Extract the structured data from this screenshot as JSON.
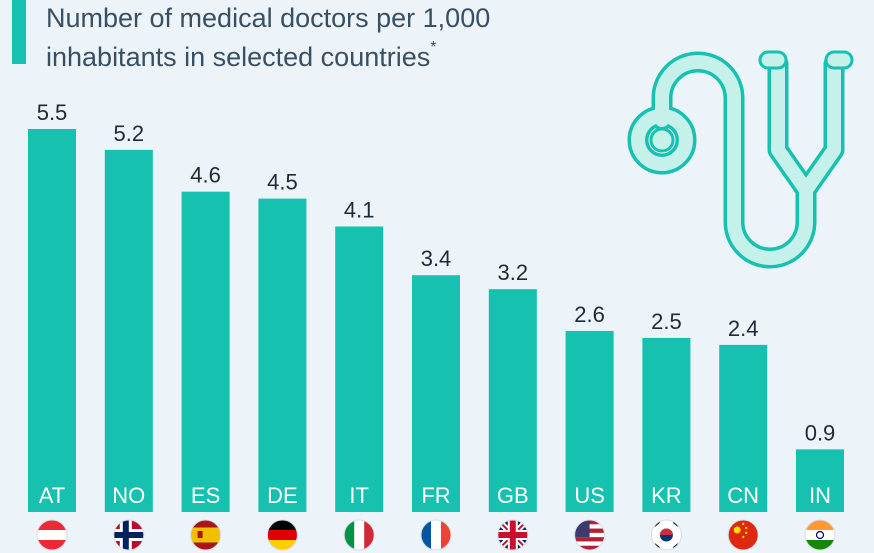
{
  "title": "Number of medical doctors per 1,000 inhabitants in selected countries",
  "title_marker": "*",
  "colors": {
    "bar": "#17c1b0",
    "background": "#ecf3f9",
    "title": "#3a4f61",
    "value": "#1d2b39",
    "icon_fill": "#c6f1ea",
    "icon_stroke": "#17c1b0"
  },
  "icon": "stethoscope-icon",
  "chart_data": {
    "type": "bar",
    "title": "Number of medical doctors per 1,000 inhabitants in selected countries",
    "xlabel": "",
    "ylabel": "",
    "categories": [
      "AT",
      "NO",
      "ES",
      "DE",
      "IT",
      "FR",
      "GB",
      "US",
      "KR",
      "CN",
      "IN"
    ],
    "values": [
      5.5,
      5.2,
      4.6,
      4.5,
      4.1,
      3.4,
      3.2,
      2.6,
      2.5,
      2.4,
      0.9
    ],
    "value_labels": [
      "5.5",
      "5.2",
      "4.6",
      "4.5",
      "4.1",
      "3.4",
      "3.2",
      "2.6",
      "2.5",
      "2.4",
      "0.9"
    ],
    "flags": [
      "austria-flag",
      "norway-flag",
      "spain-flag",
      "germany-flag",
      "italy-flag",
      "france-flag",
      "uk-flag",
      "usa-flag",
      "south-korea-flag",
      "china-flag",
      "india-flag"
    ],
    "ylim": [
      0,
      5.5
    ],
    "grid": false,
    "legend": "none"
  }
}
